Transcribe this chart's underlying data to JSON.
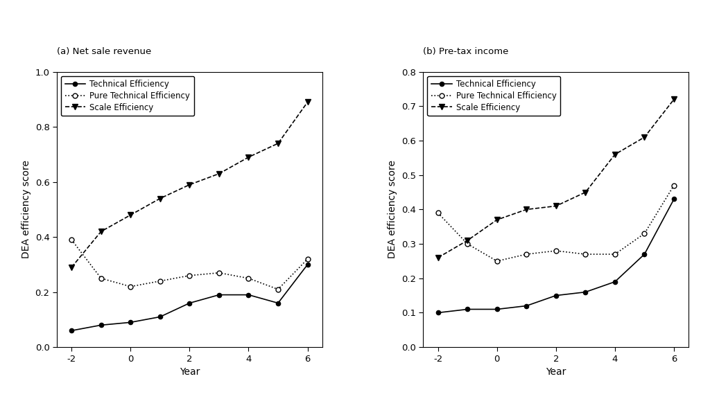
{
  "years": [
    -2,
    -1,
    0,
    1,
    2,
    3,
    4,
    5,
    6
  ],
  "panel_a": {
    "title": "(a) Net sale revenue",
    "ylim": [
      0.0,
      1.0
    ],
    "yticks": [
      0.0,
      0.2,
      0.4,
      0.6,
      0.8,
      1.0
    ],
    "technical_efficiency": [
      0.06,
      0.08,
      0.09,
      0.11,
      0.16,
      0.19,
      0.19,
      0.16,
      0.3
    ],
    "pure_technical_efficiency": [
      0.39,
      0.25,
      0.22,
      0.24,
      0.26,
      0.27,
      0.25,
      0.21,
      0.32
    ],
    "scale_efficiency": [
      0.29,
      0.42,
      0.48,
      0.54,
      0.59,
      0.63,
      0.69,
      0.74,
      0.89
    ]
  },
  "panel_b": {
    "title": "(b) Pre-tax income",
    "ylim": [
      0.0,
      0.8
    ],
    "yticks": [
      0.0,
      0.1,
      0.2,
      0.3,
      0.4,
      0.5,
      0.6,
      0.7,
      0.8
    ],
    "technical_efficiency": [
      0.1,
      0.11,
      0.11,
      0.12,
      0.15,
      0.16,
      0.19,
      0.27,
      0.43
    ],
    "pure_technical_efficiency": [
      0.39,
      0.3,
      0.25,
      0.27,
      0.28,
      0.27,
      0.27,
      0.33,
      0.47
    ],
    "scale_efficiency": [
      0.26,
      0.31,
      0.37,
      0.4,
      0.41,
      0.45,
      0.56,
      0.61,
      0.72
    ]
  },
  "ylabel": "DEA efficiency score",
  "xlabel": "Year",
  "line_color": "#000000",
  "background_color": "#ffffff",
  "legend_labels": [
    "Technical Efficiency",
    "Pure Technical Efficiency",
    "Scale Efficiency"
  ],
  "xticks_display": [
    -2,
    0,
    2,
    4,
    6
  ],
  "xticks_all": [
    -2,
    -1,
    0,
    1,
    2,
    3,
    4,
    5,
    6
  ]
}
